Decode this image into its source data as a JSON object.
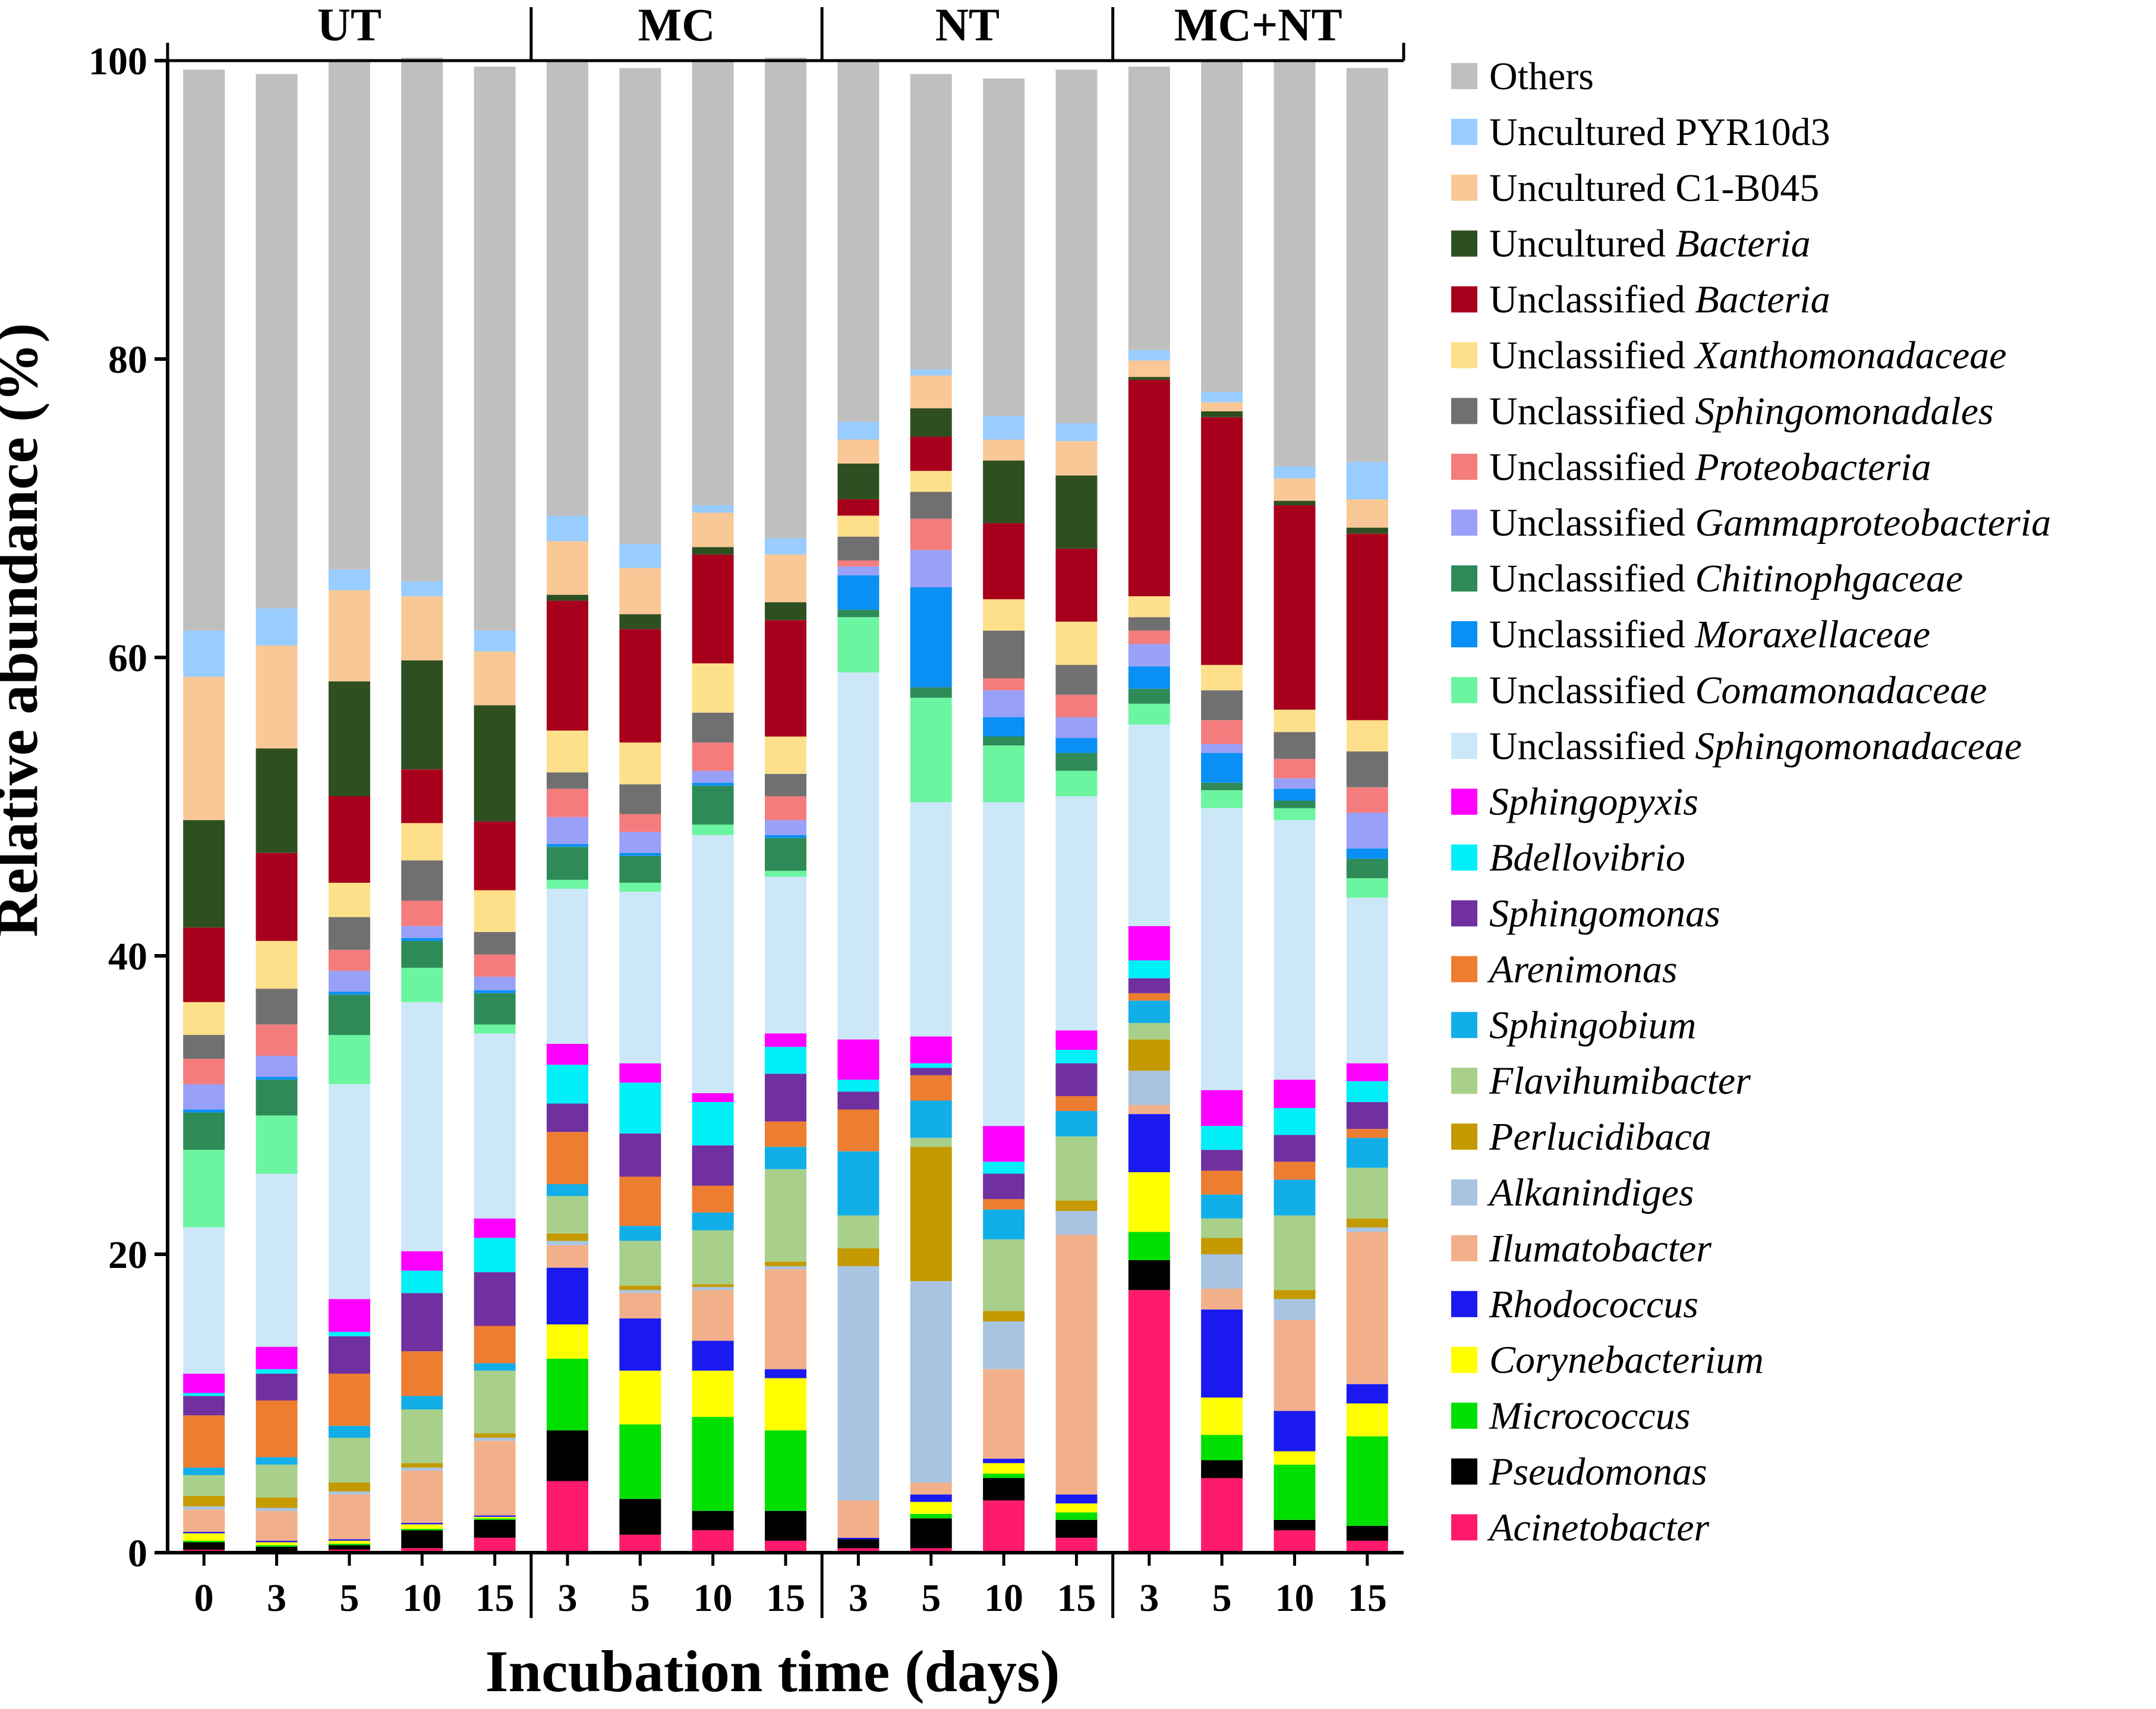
{
  "chart_data": {
    "type": "bar",
    "stacked": true,
    "ylabel": "Relative abundance (%)",
    "xlabel": "Incubation time (days)",
    "ylim": [
      0,
      100
    ],
    "yticks": [
      "0",
      "20",
      "40",
      "60",
      "80",
      "100"
    ],
    "groups": [
      {
        "label": "UT",
        "samples": [
          "0",
          "3",
          "5",
          "10",
          "15"
        ]
      },
      {
        "label": "MC",
        "samples": [
          "3",
          "5",
          "10",
          "15"
        ]
      },
      {
        "label": "NT",
        "samples": [
          "3",
          "5",
          "10",
          "15"
        ]
      },
      {
        "label": "MC+NT",
        "samples": [
          "3",
          "5",
          "10",
          "15"
        ]
      }
    ],
    "categories": [
      "UT 0",
      "UT 3",
      "UT 5",
      "UT 10",
      "UT 15",
      "MC 3",
      "MC 5",
      "MC 10",
      "MC 15",
      "NT 3",
      "NT 5",
      "NT 10",
      "NT 15",
      "MC+NT 3",
      "MC+NT 5",
      "MC+NT 10",
      "MC+NT 15"
    ],
    "series": [
      {
        "name": "Acinetobacter",
        "italic": true,
        "color": "#FF1A6E",
        "values": [
          0.2,
          0.1,
          0.2,
          0.3,
          1.0,
          4.8,
          1.2,
          1.5,
          0.8,
          0.3,
          0.3,
          3.5,
          1.0,
          17.6,
          5.0,
          1.5,
          0.8
        ]
      },
      {
        "name": "Pseudomonas",
        "italic": true,
        "color": "#000000",
        "values": [
          0.5,
          0.3,
          0.3,
          1.2,
          1.2,
          3.4,
          2.4,
          1.3,
          2.0,
          0.6,
          2.0,
          1.5,
          1.2,
          2.0,
          1.2,
          0.7,
          1.0
        ]
      },
      {
        "name": "Micrococcus",
        "italic": true,
        "color": "#00E000",
        "values": [
          0.1,
          0.1,
          0.1,
          0.1,
          0.1,
          4.8,
          5.0,
          6.3,
          5.4,
          0.0,
          0.3,
          0.3,
          0.5,
          1.9,
          1.7,
          3.7,
          6.0
        ]
      },
      {
        "name": "Corynebacterium",
        "italic": true,
        "color": "#FFFF00",
        "values": [
          0.5,
          0.2,
          0.2,
          0.3,
          0.1,
          2.3,
          3.6,
          3.1,
          3.5,
          0.0,
          0.8,
          0.7,
          0.6,
          4.0,
          2.5,
          0.9,
          2.2
        ]
      },
      {
        "name": "Rhodococcus",
        "italic": true,
        "color": "#1A1AF0",
        "values": [
          0.1,
          0.1,
          0.1,
          0.1,
          0.1,
          3.8,
          3.5,
          2.0,
          0.6,
          0.1,
          0.5,
          0.3,
          0.6,
          3.9,
          5.9,
          2.7,
          1.3
        ]
      },
      {
        "name": "Ilumatobacter",
        "italic": true,
        "color": "#F2B08A",
        "values": [
          1.5,
          2.0,
          3.0,
          3.5,
          5.0,
          1.5,
          1.7,
          3.4,
          6.7,
          2.5,
          0.8,
          6.0,
          17.4,
          0.6,
          1.4,
          6.1,
          10.2
        ]
      },
      {
        "name": "Alkanindiges",
        "italic": true,
        "color": "#A8C4E0",
        "values": [
          0.2,
          0.2,
          0.2,
          0.2,
          0.2,
          0.3,
          0.2,
          0.2,
          0.2,
          15.7,
          13.5,
          3.2,
          1.6,
          2.3,
          2.3,
          1.4,
          0.3
        ]
      },
      {
        "name": "Perlucidibaca",
        "italic": true,
        "color": "#C49A00",
        "values": [
          0.7,
          0.7,
          0.6,
          0.3,
          0.3,
          0.5,
          0.3,
          0.2,
          0.3,
          1.2,
          9.0,
          0.7,
          0.7,
          2.1,
          1.1,
          0.6,
          0.6
        ]
      },
      {
        "name": "Flavihumibacter",
        "italic": true,
        "color": "#A8D08A",
        "values": [
          1.4,
          2.2,
          3.0,
          3.6,
          4.2,
          2.5,
          3.0,
          3.6,
          6.2,
          2.2,
          0.6,
          4.8,
          4.3,
          1.1,
          1.3,
          5.0,
          3.4
        ]
      },
      {
        "name": "Sphingobium",
        "italic": true,
        "color": "#12AEE8",
        "values": [
          0.5,
          0.5,
          0.8,
          0.9,
          0.5,
          0.8,
          1.0,
          1.2,
          1.5,
          4.3,
          2.5,
          2.0,
          1.7,
          1.5,
          1.6,
          2.4,
          2.0
        ]
      },
      {
        "name": "Arenimonas",
        "italic": true,
        "color": "#ED7D31",
        "values": [
          3.5,
          3.8,
          3.5,
          3.0,
          2.5,
          3.5,
          3.3,
          1.8,
          1.7,
          2.8,
          1.7,
          0.7,
          1.0,
          0.5,
          1.6,
          1.2,
          0.6
        ]
      },
      {
        "name": "Sphingomonas",
        "italic": true,
        "color": "#7030A0",
        "values": [
          1.3,
          1.8,
          2.5,
          3.9,
          3.6,
          1.9,
          2.9,
          2.7,
          3.2,
          1.2,
          0.5,
          1.7,
          2.2,
          1.0,
          1.4,
          1.8,
          1.8
        ]
      },
      {
        "name": "Bdellovibrio",
        "italic": true,
        "color": "#00F0F8",
        "values": [
          0.2,
          0.3,
          0.3,
          1.5,
          2.3,
          2.6,
          3.4,
          2.9,
          1.8,
          0.8,
          0.3,
          0.8,
          0.9,
          1.2,
          1.6,
          1.8,
          1.4
        ]
      },
      {
        "name": "Sphingopyxis",
        "italic": true,
        "color": "#FF00FF",
        "values": [
          1.3,
          1.5,
          2.2,
          1.3,
          1.3,
          1.4,
          1.3,
          0.6,
          0.9,
          2.7,
          1.8,
          2.4,
          1.3,
          2.3,
          2.4,
          1.9,
          1.2
        ]
      },
      {
        "name": "Unclassified Sphingomonadaceae",
        "prefix": "Unclassified ",
        "italic_part": "Sphingomonadaceae",
        "color": "#CCE8F8",
        "values": [
          9.8,
          11.6,
          14.4,
          16.7,
          12.4,
          10.4,
          11.5,
          17.3,
          10.5,
          24.6,
          15.7,
          21.7,
          15.7,
          13.5,
          18.9,
          17.4,
          11.1
        ]
      },
      {
        "name": "Unclassified Comamonadaceae",
        "prefix": "Unclassified ",
        "italic_part": "Comamonadaceae",
        "color": "#6CF5A0",
        "values": [
          5.2,
          3.9,
          3.3,
          2.3,
          0.6,
          0.6,
          0.6,
          0.7,
          0.4,
          3.7,
          7.0,
          3.8,
          1.7,
          1.4,
          1.2,
          0.8,
          1.3
        ]
      },
      {
        "name": "Unclassified Chitinophgaceae",
        "prefix": "Unclassified ",
        "italic_part": "Chitinophgaceae",
        "color": "#2E8B57",
        "values": [
          2.5,
          2.4,
          2.7,
          1.8,
          2.1,
          2.2,
          1.8,
          2.6,
          2.2,
          0.5,
          0.7,
          0.6,
          1.2,
          1.0,
          0.5,
          0.5,
          1.3
        ]
      },
      {
        "name": "Unclassified Moraxellaceae",
        "prefix": "Unclassified ",
        "italic_part": "Moraxellaceae",
        "color": "#0A8FF5",
        "values": [
          0.2,
          0.2,
          0.2,
          0.2,
          0.2,
          0.2,
          0.2,
          0.2,
          0.2,
          2.3,
          6.7,
          1.3,
          1.0,
          1.5,
          2.0,
          0.8,
          0.7
        ]
      },
      {
        "name": "Unclassified Gammaproteobacteria",
        "prefix": "Unclassified ",
        "italic_part": "Gammaproteobacteria",
        "color": "#99A0F8",
        "values": [
          1.7,
          1.4,
          1.4,
          0.8,
          0.9,
          1.8,
          1.4,
          0.8,
          1.0,
          0.6,
          2.5,
          1.8,
          1.4,
          1.5,
          0.6,
          0.7,
          2.4
        ]
      },
      {
        "name": "Unclassified Proteobacteria",
        "prefix": "Unclassified ",
        "italic_part": "Proteobacteria",
        "color": "#F47C7C",
        "values": [
          1.7,
          2.1,
          1.4,
          1.7,
          1.5,
          1.9,
          1.2,
          1.9,
          1.6,
          0.4,
          2.1,
          0.8,
          1.5,
          0.9,
          1.6,
          1.3,
          1.7
        ]
      },
      {
        "name": "Unclassified Sphingomonadales",
        "prefix": "Unclassified ",
        "italic_part": "Sphingomonadales",
        "color": "#707070",
        "values": [
          1.6,
          2.4,
          2.2,
          2.7,
          1.5,
          1.1,
          2.0,
          2.0,
          1.5,
          1.6,
          1.8,
          3.2,
          2.0,
          0.9,
          2.0,
          1.8,
          2.4
        ]
      },
      {
        "name": "Unclassified Xanthomonadaceae",
        "prefix": "Unclassified ",
        "italic_part": "Xanthomonadaceae",
        "color": "#FFE08A",
        "values": [
          2.2,
          3.2,
          2.3,
          2.5,
          2.8,
          2.8,
          2.8,
          3.3,
          2.5,
          1.4,
          1.4,
          2.1,
          2.9,
          1.4,
          1.7,
          1.5,
          2.1
        ]
      },
      {
        "name": "Unclassified Bacteria",
        "prefix": "Unclassified ",
        "italic_part": "Bacteria",
        "color": "#A8001C",
        "values": [
          5.0,
          5.9,
          5.8,
          3.6,
          4.6,
          8.7,
          7.6,
          7.3,
          7.8,
          1.1,
          2.3,
          5.1,
          4.9,
          14.5,
          16.6,
          13.7,
          12.5
        ]
      },
      {
        "name": "Uncultured Bacteria",
        "prefix": "Uncultured ",
        "italic_part": "Bacteria",
        "color": "#2E5020",
        "values": [
          7.2,
          7.0,
          7.7,
          7.3,
          7.8,
          0.4,
          1.0,
          0.5,
          1.2,
          2.4,
          1.9,
          4.2,
          4.9,
          0.2,
          0.4,
          0.3,
          0.4
        ]
      },
      {
        "name": "Uncultured C1-B045",
        "prefix": "Uncultured C1-B045",
        "italic_part": "",
        "color": "#FAC896",
        "values": [
          9.6,
          6.9,
          6.1,
          4.3,
          3.6,
          3.6,
          3.1,
          2.3,
          3.2,
          1.6,
          2.2,
          1.4,
          2.3,
          1.1,
          0.6,
          1.5,
          1.9
        ]
      },
      {
        "name": "Uncultured PYR10d3",
        "prefix": "Uncultured PYR10d3",
        "italic_part": "",
        "color": "#99CCFF",
        "values": [
          3.1,
          2.5,
          1.4,
          1.0,
          1.4,
          1.7,
          1.6,
          0.5,
          1.1,
          1.2,
          0.4,
          1.6,
          1.2,
          0.7,
          0.7,
          0.8,
          2.5
        ]
      },
      {
        "name": "Others",
        "prefix": "Others",
        "italic_part": "",
        "color": "#BFBFBF",
        "values": [
          37.6,
          35.8,
          34.0,
          35.1,
          37.8,
          30.5,
          31.9,
          29.8,
          32.2,
          24.1,
          19.8,
          22.6,
          23.7,
          19.0,
          22.2,
          27.3,
          26.4
        ]
      }
    ],
    "legend_order": [
      "Others",
      "Uncultured PYR10d3",
      "Uncultured C1-B045",
      "Uncultured Bacteria",
      "Unclassified Bacteria",
      "Unclassified Xanthomonadaceae",
      "Unclassified Sphingomonadales",
      "Unclassified Proteobacteria",
      "Unclassified Gammaproteobacteria",
      "Unclassified Chitinophgaceae",
      "Unclassified Moraxellaceae",
      "Unclassified Comamonadaceae",
      "Unclassified Sphingomonadaceae",
      "Sphingopyxis",
      "Bdellovibrio",
      "Sphingomonas",
      "Arenimonas",
      "Sphingobium",
      "Flavihumibacter",
      "Perlucidibaca",
      "Alkanindiges",
      "Ilumatobacter",
      "Rhodococcus",
      "Corynebacterium",
      "Micrococcus",
      "Pseudomonas",
      "Acinetobacter"
    ],
    "legend_placement": "right"
  }
}
